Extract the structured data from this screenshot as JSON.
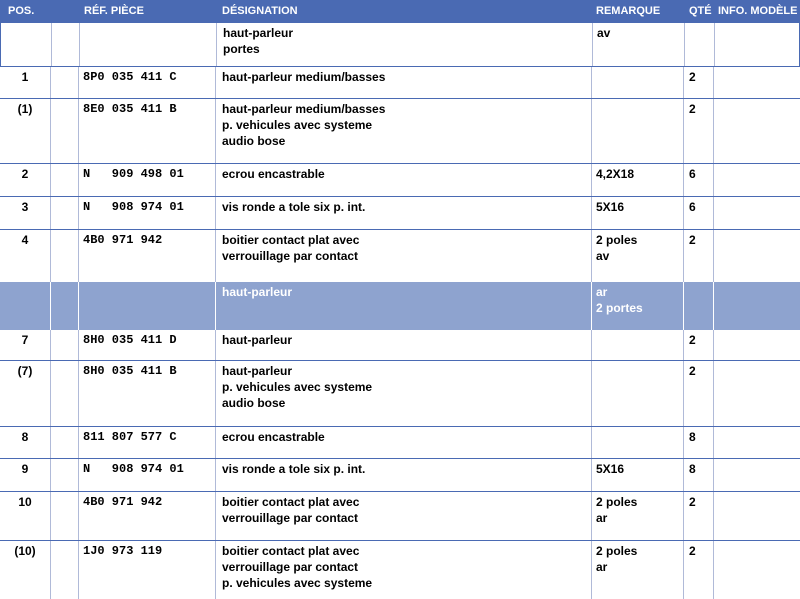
{
  "columns": {
    "pos": "POS.",
    "ref": "RÉF. PIÈCE",
    "designation": "DÉSIGNATION",
    "remarque": "REMARQUE",
    "qte": "QTÉ",
    "info": "INFO. MODÈLE"
  },
  "rows": [
    {
      "type": "section-white",
      "pos": "",
      "ref": "",
      "designation": [
        "haut-parleur",
        "portes"
      ],
      "remarque": [
        "av"
      ],
      "qte": "",
      "info": ""
    },
    {
      "type": "item",
      "pos": "1",
      "ref": "8P0 035 411 C",
      "designation": [
        "haut-parleur medium/basses"
      ],
      "remarque": [],
      "qte": "2",
      "info": ""
    },
    {
      "type": "item",
      "pos": "(1)",
      "ref": "8E0 035 411 B",
      "designation": [
        "haut-parleur medium/basses",
        "p. vehicules avec systeme",
        "audio bose"
      ],
      "remarque": [],
      "qte": "2",
      "info": ""
    },
    {
      "type": "item",
      "pos": "2",
      "ref": "N   909 498 01",
      "designation": [
        "ecrou encastrable"
      ],
      "remarque": [
        "4,2X18"
      ],
      "qte": "6",
      "info": ""
    },
    {
      "type": "item",
      "pos": "3",
      "ref": "N   908 974 01",
      "designation": [
        "vis ronde a tole six p. int."
      ],
      "remarque": [
        "5X16"
      ],
      "qte": "6",
      "info": ""
    },
    {
      "type": "item",
      "pos": "4",
      "ref": "4B0 971 942",
      "designation": [
        "boitier contact plat avec",
        "verrouillage par contact"
      ],
      "remarque": [
        "2 poles",
        "av"
      ],
      "qte": "2",
      "info": ""
    },
    {
      "type": "section",
      "pos": "",
      "ref": "",
      "designation": [
        "haut-parleur"
      ],
      "remarque": [
        "ar",
        "2 portes"
      ],
      "qte": "",
      "info": ""
    },
    {
      "type": "item",
      "pos": "7",
      "ref": "8H0 035 411 D",
      "designation": [
        "haut-parleur"
      ],
      "remarque": [],
      "qte": "2",
      "info": ""
    },
    {
      "type": "item",
      "pos": "(7)",
      "ref": "8H0 035 411 B",
      "designation": [
        "haut-parleur",
        "p. vehicules avec systeme",
        "audio bose"
      ],
      "remarque": [],
      "qte": "2",
      "info": ""
    },
    {
      "type": "item",
      "pos": "8",
      "ref": "811 807 577 C",
      "designation": [
        "ecrou encastrable"
      ],
      "remarque": [],
      "qte": "8",
      "info": ""
    },
    {
      "type": "item",
      "pos": "9",
      "ref": "N   908 974 01",
      "designation": [
        "vis ronde a tole six p. int."
      ],
      "remarque": [
        "5X16"
      ],
      "qte": "8",
      "info": ""
    },
    {
      "type": "item",
      "pos": "10",
      "ref": "4B0 971 942",
      "designation": [
        "boitier contact plat avec",
        "verrouillage par contact"
      ],
      "remarque": [
        "2 poles",
        "ar"
      ],
      "qte": "2",
      "info": ""
    },
    {
      "type": "item",
      "pos": "(10)",
      "ref": "1J0 973 119",
      "designation": [
        "boitier contact plat avec",
        "verrouillage par contact",
        "p. vehicules avec systeme"
      ],
      "remarque": [
        "2 poles",
        "ar"
      ],
      "qte": "2",
      "info": ""
    }
  ],
  "colors": {
    "header": "#4a6ab3",
    "section": "#8ea3cf",
    "gridline": "#b0bad8"
  }
}
